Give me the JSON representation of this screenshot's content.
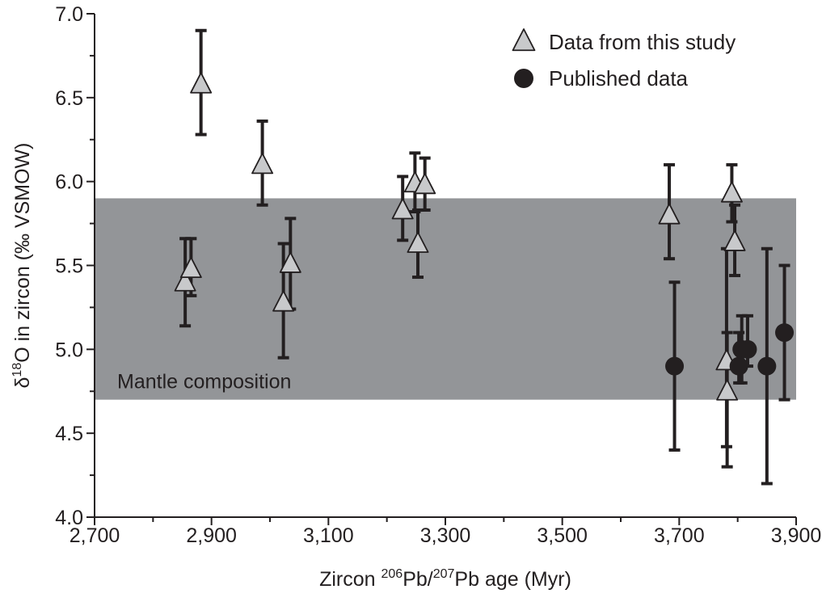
{
  "chart_data": {
    "type": "scatter",
    "xlim": [
      2700,
      3900
    ],
    "ylim": [
      4.0,
      7.0
    ],
    "x_ticks": [
      2700,
      2900,
      3100,
      3300,
      3500,
      3700,
      3900
    ],
    "x_tick_labels": [
      "2,700",
      "2,900",
      "3,100",
      "3,300",
      "3,500",
      "3,700",
      "3,900"
    ],
    "y_ticks": [
      4.0,
      4.5,
      5.0,
      5.5,
      6.0,
      6.5,
      7.0
    ],
    "y_tick_labels": [
      "4.0",
      "4.5",
      "5.0",
      "5.5",
      "6.0",
      "6.5",
      "7.0"
    ],
    "xlabel": {
      "pre": "Zircon ",
      "sup1": "206",
      "mid": "Pb/",
      "sup2": "207",
      "post": "Pb age (Myr)"
    },
    "ylabel": {
      "pre": "δ",
      "sup": "18",
      "post": "O in zircon (‰ VSMOW)"
    },
    "band": {
      "y_min": 4.7,
      "y_max": 5.9,
      "label": "Mantle composition",
      "color": "#939598"
    },
    "legend": {
      "position": "top-right"
    },
    "series": [
      {
        "name": "Data from this study",
        "marker": "triangle",
        "color": "#c8c9cb",
        "points": [
          {
            "x": 2855,
            "y": 5.4,
            "err_low": 5.14,
            "err_high": 5.66
          },
          {
            "x": 2865,
            "y": 5.48,
            "err_low": 5.32,
            "err_high": 5.66
          },
          {
            "x": 2882,
            "y": 6.58,
            "err_low": 6.28,
            "err_high": 6.9
          },
          {
            "x": 2987,
            "y": 6.1,
            "err_low": 5.86,
            "err_high": 6.36
          },
          {
            "x": 3023,
            "y": 5.28,
            "err_low": 4.95,
            "err_high": 5.63
          },
          {
            "x": 3035,
            "y": 5.51,
            "err_low": 5.24,
            "err_high": 5.78
          },
          {
            "x": 3227,
            "y": 5.83,
            "err_low": 5.65,
            "err_high": 6.03
          },
          {
            "x": 3248,
            "y": 5.99,
            "err_low": 5.82,
            "err_high": 6.17
          },
          {
            "x": 3253,
            "y": 5.63,
            "err_low": 5.43,
            "err_high": 5.83
          },
          {
            "x": 3265,
            "y": 5.98,
            "err_low": 5.83,
            "err_high": 6.14
          },
          {
            "x": 3683,
            "y": 5.8,
            "err_low": 5.54,
            "err_high": 6.1
          },
          {
            "x": 3781,
            "y": 4.93,
            "err_low": 4.42,
            "err_high": 5.6
          },
          {
            "x": 3782,
            "y": 4.75,
            "err_low": 4.3,
            "err_high": 5.1
          },
          {
            "x": 3790,
            "y": 5.93,
            "err_low": 5.76,
            "err_high": 6.1
          },
          {
            "x": 3795,
            "y": 5.64,
            "err_low": 5.44,
            "err_high": 5.86
          }
        ]
      },
      {
        "name": "Published data",
        "marker": "circle",
        "color": "#231f20",
        "points": [
          {
            "x": 3692,
            "y": 4.9,
            "err_low": 4.4,
            "err_high": 5.4
          },
          {
            "x": 3802,
            "y": 4.9,
            "err_low": 4.8,
            "err_high": 5.1
          },
          {
            "x": 3807,
            "y": 5.0,
            "err_low": 4.8,
            "err_high": 5.2
          },
          {
            "x": 3817,
            "y": 5.0,
            "err_low": 4.9,
            "err_high": 5.2
          },
          {
            "x": 3850,
            "y": 4.9,
            "err_low": 4.2,
            "err_high": 5.6
          },
          {
            "x": 3880,
            "y": 5.1,
            "err_low": 4.7,
            "err_high": 5.5
          }
        ]
      }
    ]
  }
}
